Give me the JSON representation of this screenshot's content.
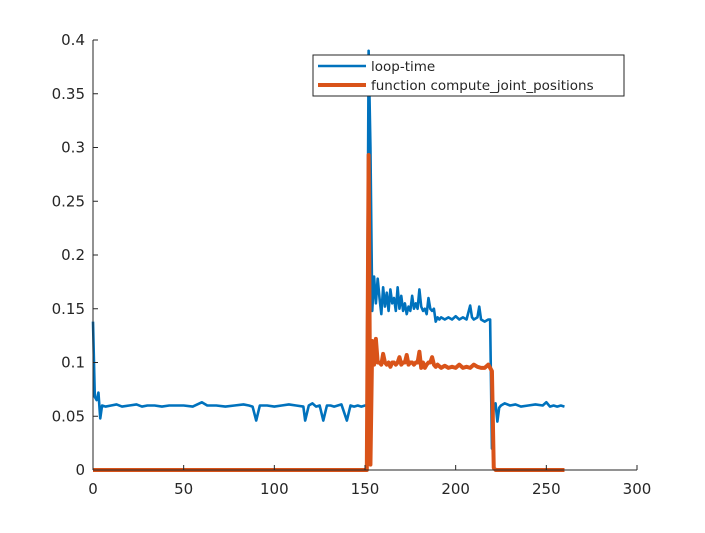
{
  "chart_data": {
    "type": "line",
    "title": "",
    "xlabel": "",
    "ylabel": "",
    "xlim": [
      0,
      300
    ],
    "ylim": [
      0,
      0.4
    ],
    "xticks": [
      0,
      50,
      100,
      150,
      200,
      250,
      300
    ],
    "yticks": [
      0,
      0.05,
      0.1,
      0.15,
      0.2,
      0.25,
      0.3,
      0.35,
      0.4
    ],
    "xtick_labels": [
      "0",
      "50",
      "100",
      "150",
      "200",
      "250",
      "300"
    ],
    "ytick_labels": [
      "0",
      "0.05",
      "0.1",
      "0.15",
      "0.2",
      "0.25",
      "0.3",
      "0.35",
      "0.4"
    ],
    "grid": false,
    "legend_position": "top-right",
    "series": [
      {
        "name": "loop-time",
        "color": "#0072BD",
        "points": [
          [
            0,
            0.138
          ],
          [
            1,
            0.068
          ],
          [
            2,
            0.065
          ],
          [
            3,
            0.072
          ],
          [
            4,
            0.048
          ],
          [
            5,
            0.06
          ],
          [
            7,
            0.059
          ],
          [
            10,
            0.06
          ],
          [
            13,
            0.061
          ],
          [
            16,
            0.059
          ],
          [
            20,
            0.06
          ],
          [
            24,
            0.061
          ],
          [
            27,
            0.059
          ],
          [
            30,
            0.06
          ],
          [
            34,
            0.06
          ],
          [
            38,
            0.059
          ],
          [
            42,
            0.06
          ],
          [
            46,
            0.06
          ],
          [
            50,
            0.06
          ],
          [
            55,
            0.059
          ],
          [
            60,
            0.063
          ],
          [
            63,
            0.06
          ],
          [
            68,
            0.06
          ],
          [
            73,
            0.059
          ],
          [
            78,
            0.06
          ],
          [
            83,
            0.061
          ],
          [
            86,
            0.06
          ],
          [
            88,
            0.059
          ],
          [
            90,
            0.046
          ],
          [
            92,
            0.06
          ],
          [
            96,
            0.06
          ],
          [
            100,
            0.059
          ],
          [
            104,
            0.06
          ],
          [
            108,
            0.061
          ],
          [
            112,
            0.06
          ],
          [
            116,
            0.059
          ],
          [
            117,
            0.046
          ],
          [
            119,
            0.06
          ],
          [
            121,
            0.062
          ],
          [
            123,
            0.059
          ],
          [
            125,
            0.06
          ],
          [
            127,
            0.046
          ],
          [
            129,
            0.06
          ],
          [
            131,
            0.06
          ],
          [
            133,
            0.059
          ],
          [
            135,
            0.06
          ],
          [
            137,
            0.061
          ],
          [
            140,
            0.046
          ],
          [
            142,
            0.06
          ],
          [
            144,
            0.059
          ],
          [
            146,
            0.06
          ],
          [
            148,
            0.059
          ],
          [
            150,
            0.06
          ],
          [
            151,
            0.06
          ],
          [
            152,
            0.39
          ],
          [
            153,
            0.3
          ],
          [
            154,
            0.148
          ],
          [
            155,
            0.18
          ],
          [
            156,
            0.155
          ],
          [
            157,
            0.178
          ],
          [
            158,
            0.16
          ],
          [
            159,
            0.145
          ],
          [
            160,
            0.17
          ],
          [
            161,
            0.152
          ],
          [
            162,
            0.165
          ],
          [
            163,
            0.148
          ],
          [
            164,
            0.168
          ],
          [
            165,
            0.155
          ],
          [
            166,
            0.16
          ],
          [
            167,
            0.148
          ],
          [
            168,
            0.17
          ],
          [
            169,
            0.15
          ],
          [
            170,
            0.162
          ],
          [
            171,
            0.148
          ],
          [
            172,
            0.155
          ],
          [
            173,
            0.145
          ],
          [
            174,
            0.152
          ],
          [
            175,
            0.148
          ],
          [
            176,
            0.162
          ],
          [
            177,
            0.15
          ],
          [
            178,
            0.155
          ],
          [
            179,
            0.15
          ],
          [
            180,
            0.168
          ],
          [
            181,
            0.152
          ],
          [
            182,
            0.148
          ],
          [
            183,
            0.15
          ],
          [
            184,
            0.145
          ],
          [
            185,
            0.16
          ],
          [
            186,
            0.15
          ],
          [
            187,
            0.148
          ],
          [
            188,
            0.15
          ],
          [
            189,
            0.138
          ],
          [
            190,
            0.142
          ],
          [
            191,
            0.14
          ],
          [
            192,
            0.142
          ],
          [
            194,
            0.14
          ],
          [
            196,
            0.142
          ],
          [
            198,
            0.14
          ],
          [
            200,
            0.143
          ],
          [
            202,
            0.14
          ],
          [
            204,
            0.142
          ],
          [
            206,
            0.14
          ],
          [
            208,
            0.153
          ],
          [
            209,
            0.142
          ],
          [
            210,
            0.14
          ],
          [
            212,
            0.142
          ],
          [
            213,
            0.152
          ],
          [
            214,
            0.14
          ],
          [
            216,
            0.138
          ],
          [
            218,
            0.14
          ],
          [
            219,
            0.14
          ],
          [
            220,
            0.02
          ],
          [
            221,
            0.06
          ],
          [
            222,
            0.062
          ],
          [
            223,
            0.045
          ],
          [
            224,
            0.058
          ],
          [
            225,
            0.06
          ],
          [
            227,
            0.062
          ],
          [
            230,
            0.06
          ],
          [
            233,
            0.061
          ],
          [
            236,
            0.059
          ],
          [
            240,
            0.06
          ],
          [
            244,
            0.061
          ],
          [
            248,
            0.06
          ],
          [
            250,
            0.063
          ],
          [
            252,
            0.059
          ],
          [
            254,
            0.06
          ],
          [
            256,
            0.059
          ],
          [
            258,
            0.06
          ],
          [
            260,
            0.059
          ]
        ]
      },
      {
        "name": "function compute_joint_positions",
        "color": "#D95319",
        "points": [
          [
            0,
            0
          ],
          [
            150,
            0
          ],
          [
            151,
            0
          ],
          [
            152,
            0.293
          ],
          [
            153,
            0.005
          ],
          [
            154,
            0.12
          ],
          [
            155,
            0.098
          ],
          [
            156,
            0.122
          ],
          [
            157,
            0.1
          ],
          [
            158,
            0.1
          ],
          [
            159,
            0.098
          ],
          [
            160,
            0.108
          ],
          [
            161,
            0.1
          ],
          [
            162,
            0.098
          ],
          [
            163,
            0.1
          ],
          [
            164,
            0.096
          ],
          [
            165,
            0.1
          ],
          [
            166,
            0.1
          ],
          [
            167,
            0.098
          ],
          [
            168,
            0.1
          ],
          [
            169,
            0.105
          ],
          [
            170,
            0.098
          ],
          [
            171,
            0.1
          ],
          [
            172,
            0.1
          ],
          [
            173,
            0.107
          ],
          [
            174,
            0.098
          ],
          [
            175,
            0.1
          ],
          [
            176,
            0.1
          ],
          [
            177,
            0.098
          ],
          [
            178,
            0.1
          ],
          [
            179,
            0.1
          ],
          [
            180,
            0.11
          ],
          [
            181,
            0.095
          ],
          [
            182,
            0.1
          ],
          [
            183,
            0.095
          ],
          [
            184,
            0.098
          ],
          [
            185,
            0.1
          ],
          [
            186,
            0.1
          ],
          [
            187,
            0.105
          ],
          [
            188,
            0.098
          ],
          [
            189,
            0.096
          ],
          [
            190,
            0.098
          ],
          [
            192,
            0.095
          ],
          [
            194,
            0.097
          ],
          [
            196,
            0.095
          ],
          [
            198,
            0.096
          ],
          [
            200,
            0.095
          ],
          [
            202,
            0.098
          ],
          [
            204,
            0.095
          ],
          [
            206,
            0.096
          ],
          [
            208,
            0.095
          ],
          [
            210,
            0.098
          ],
          [
            212,
            0.096
          ],
          [
            214,
            0.095
          ],
          [
            216,
            0.095
          ],
          [
            218,
            0.098
          ],
          [
            219,
            0.095
          ],
          [
            220,
            0.092
          ],
          [
            221,
            0.002
          ],
          [
            222,
            0
          ],
          [
            230,
            0
          ],
          [
            240,
            0
          ],
          [
            250,
            0
          ],
          [
            260,
            0
          ]
        ]
      }
    ]
  }
}
